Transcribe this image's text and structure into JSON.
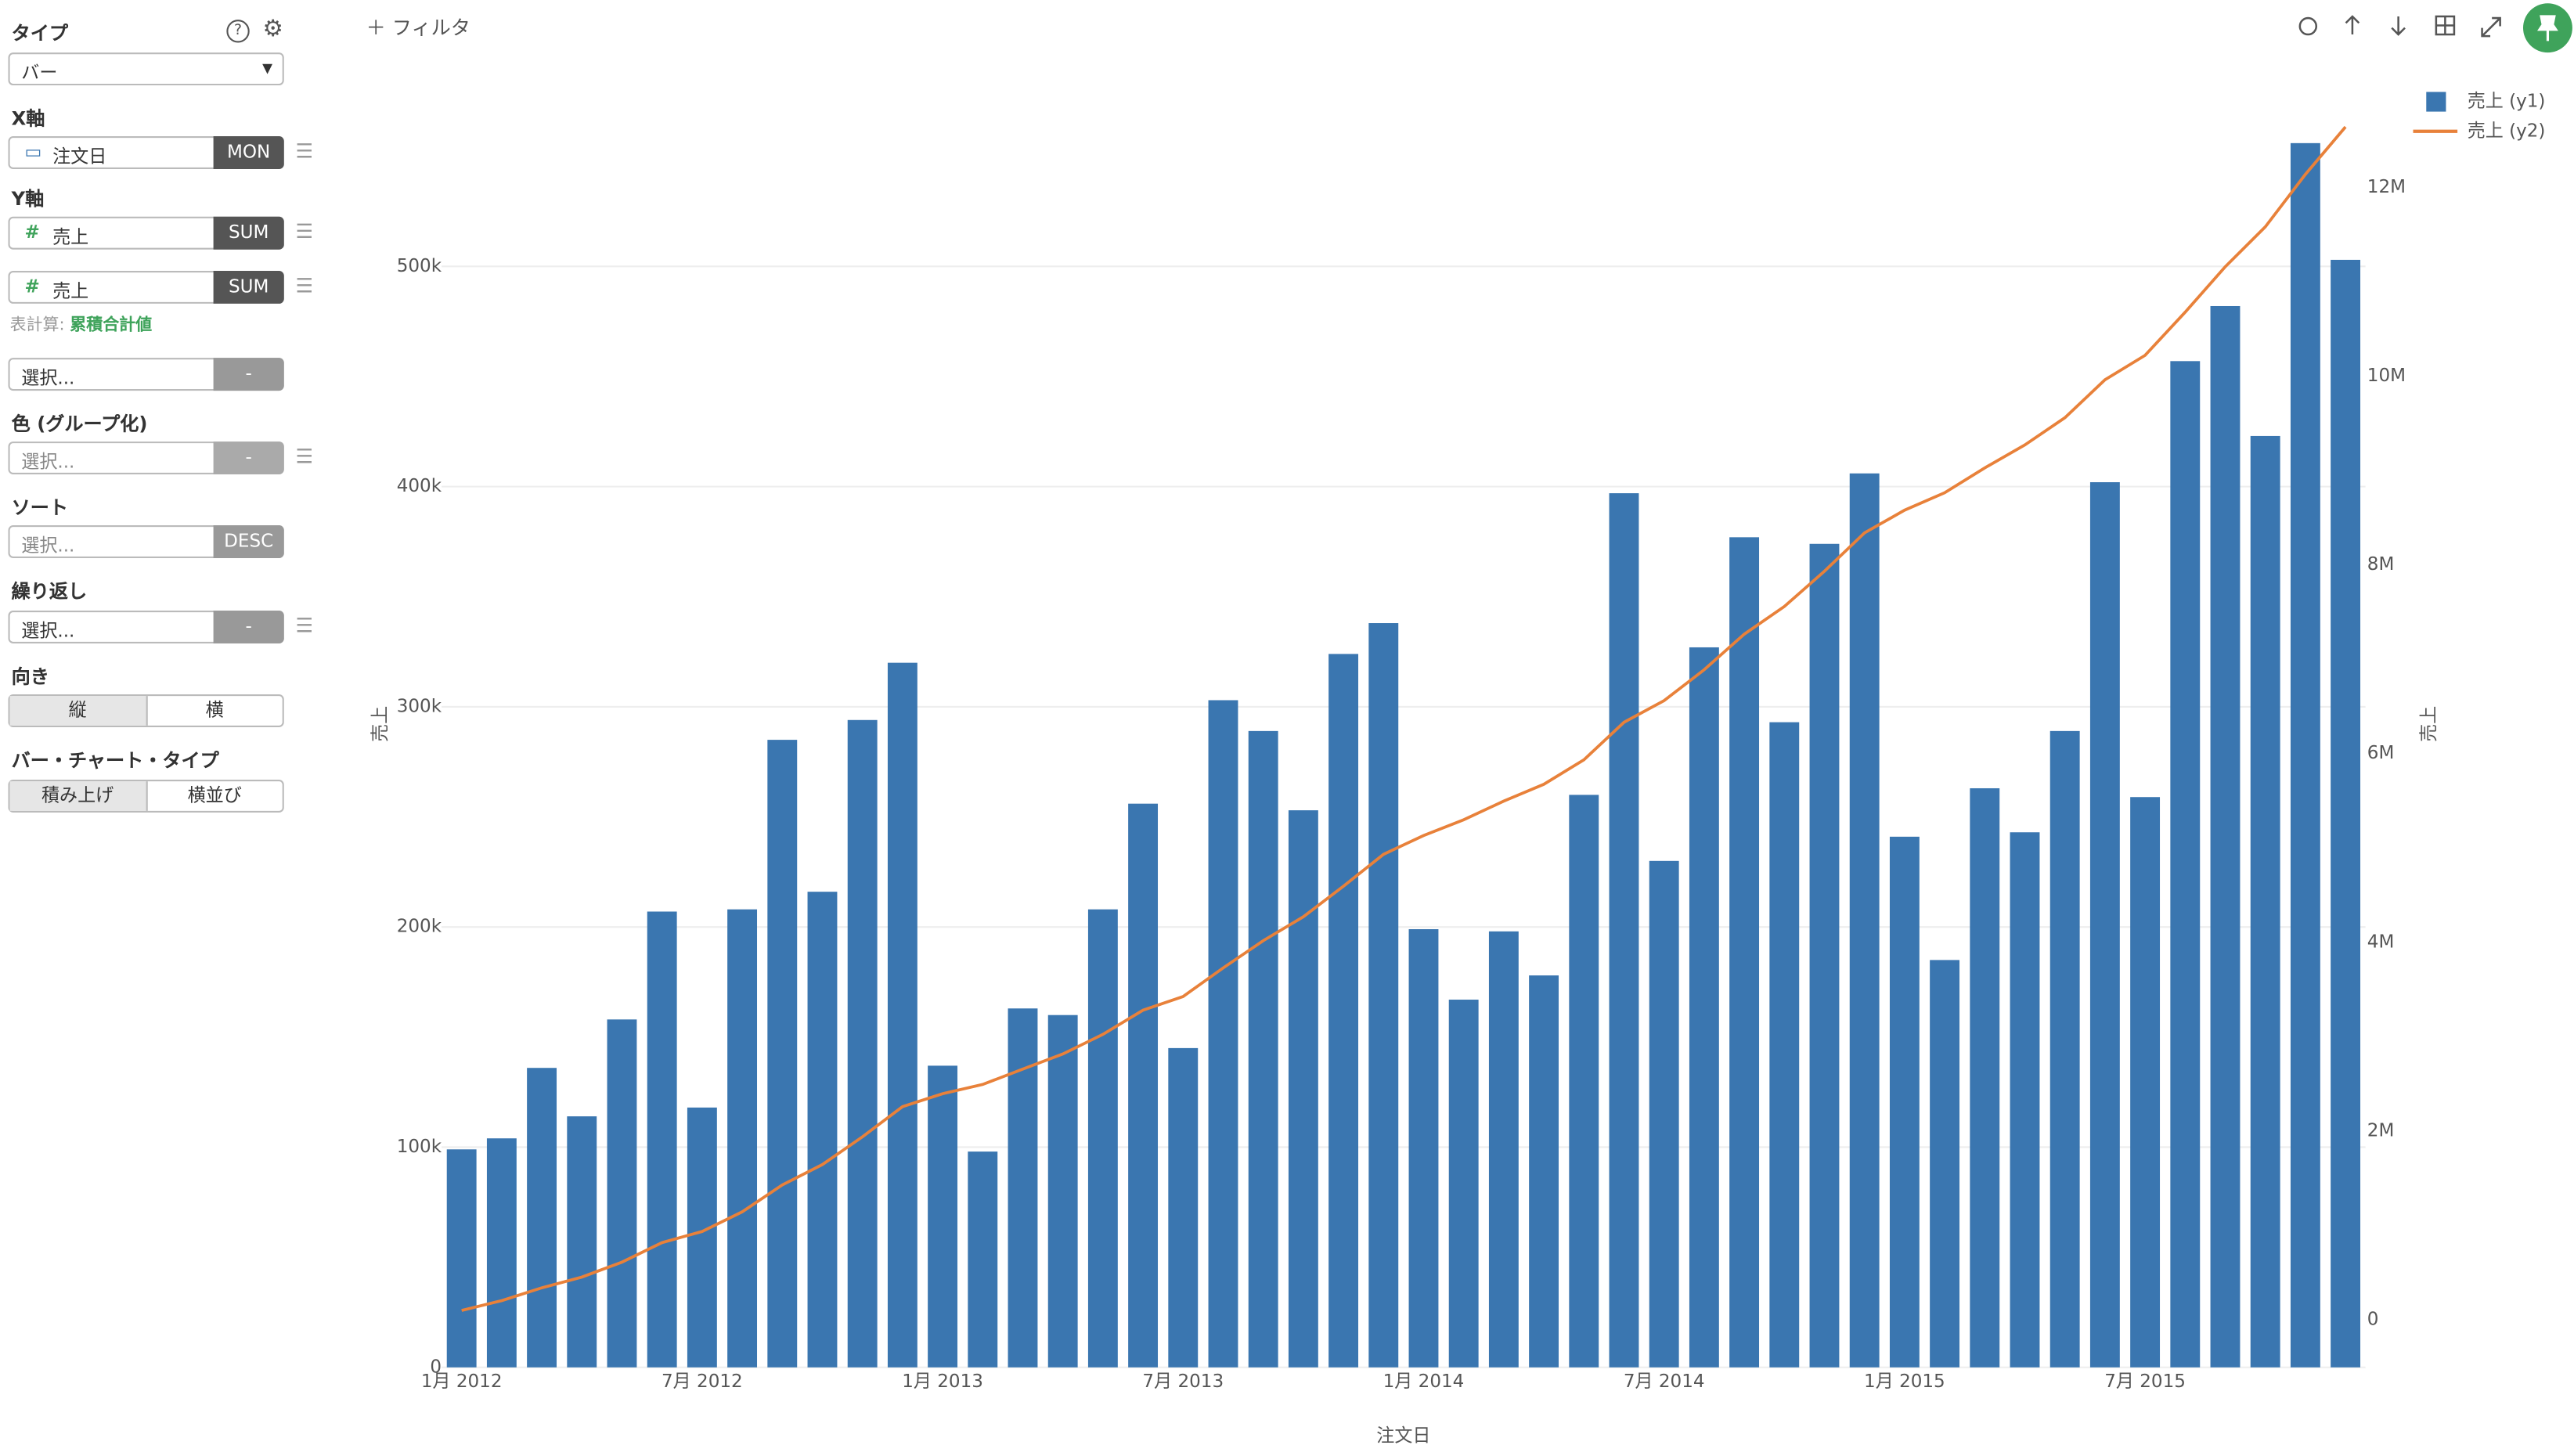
{
  "toolbar": {
    "filter": "フィルタ"
  },
  "sidebar": {
    "type_label": "タイプ",
    "type_value": "バー",
    "x_label": "X軸",
    "x_field": "注文日",
    "x_agg": "MON",
    "y_label": "Y軸",
    "y1_field": "売上",
    "y1_agg": "SUM",
    "y2_field": "売上",
    "y2_agg": "SUM",
    "calc_label": "表計算:",
    "calc_value": "累積合計値",
    "extra_select": "選択...",
    "extra_agg": "-",
    "color_label": "色 (グループ化)",
    "color_select": "選択...",
    "color_agg": "-",
    "sort_label": "ソート",
    "sort_select": "選択...",
    "sort_order": "DESC",
    "repeat_label": "繰り返し",
    "repeat_select": "選択...",
    "repeat_agg": "-",
    "orient_label": "向き",
    "orient_v": "縦",
    "orient_h": "横",
    "bartype_label": "バー・チャート・タイプ",
    "bartype_stack": "積み上げ",
    "bartype_side": "横並び"
  },
  "chart_data": {
    "type": "bar",
    "x_label": "注文日",
    "y_label": "売上",
    "y2_label": "売上",
    "categories": [
      "1月 2012",
      null,
      null,
      null,
      null,
      null,
      "7月 2012",
      null,
      null,
      null,
      null,
      null,
      "1月 2013",
      null,
      null,
      null,
      null,
      null,
      "7月 2013",
      null,
      null,
      null,
      null,
      null,
      "1月 2014",
      null,
      null,
      null,
      null,
      null,
      "7月 2014",
      null,
      null,
      null,
      null,
      null,
      "1月 2015",
      null,
      null,
      null,
      null,
      null,
      "7月 2015",
      null,
      null,
      null,
      null,
      null
    ],
    "series": [
      {
        "name": "売上 (y1)",
        "color": "#3a76b0",
        "type": "bar",
        "values": [
          99000,
          104000,
          136000,
          114000,
          158000,
          207000,
          118000,
          208000,
          285000,
          216000,
          294000,
          320000,
          137000,
          98000,
          163000,
          160000,
          208000,
          256000,
          145000,
          303000,
          289000,
          253000,
          324000,
          338000,
          199000,
          167000,
          198000,
          178000,
          260000,
          397000,
          230000,
          327000,
          377000,
          293000,
          374000,
          406000,
          241000,
          185000,
          263000,
          243000,
          289000,
          402000,
          259000,
          457000,
          482000,
          423000,
          556000,
          503000
        ]
      },
      {
        "name": "売上 (y2)",
        "color": "#e8813a",
        "type": "line",
        "axis": "y2",
        "values": [
          99000,
          203000,
          339000,
          453000,
          611000,
          818000,
          936000,
          1144000,
          1429000,
          1645000,
          1939000,
          2259000,
          2396000,
          2494000,
          2657000,
          2817000,
          3025000,
          3281000,
          3426000,
          3729000,
          4018000,
          4271000,
          4595000,
          4933000,
          5132000,
          5299000,
          5497000,
          5675000,
          5935000,
          6332000,
          6562000,
          6889000,
          7266000,
          7559000,
          7933000,
          8339000,
          8580000,
          8765000,
          9028000,
          9271000,
          9560000,
          9962000,
          10221000,
          10678000,
          11160000,
          11583000,
          12139000,
          12642000
        ]
      }
    ],
    "ylim": [
      0,
      580000
    ],
    "yticks": [
      0,
      {
        "value": 100000,
        "label": "100k"
      },
      {
        "value": 200000,
        "label": "200k"
      },
      {
        "value": 300000,
        "label": "300k"
      },
      {
        "value": 400000,
        "label": "400k"
      },
      {
        "value": 500000,
        "label": "500k"
      }
    ],
    "y2lim": [
      -504000,
      13030000
    ],
    "y2ticks": [
      0,
      {
        "value": 2000000,
        "label": "2M"
      },
      {
        "value": 4000000,
        "label": "4M"
      },
      {
        "value": 6000000,
        "label": "6M"
      },
      {
        "value": 8000000,
        "label": "8M"
      },
      {
        "value": 10000000,
        "label": "10M"
      },
      {
        "value": 12000000,
        "label": "12M"
      }
    ],
    "grid": true,
    "legend": "top-right"
  }
}
